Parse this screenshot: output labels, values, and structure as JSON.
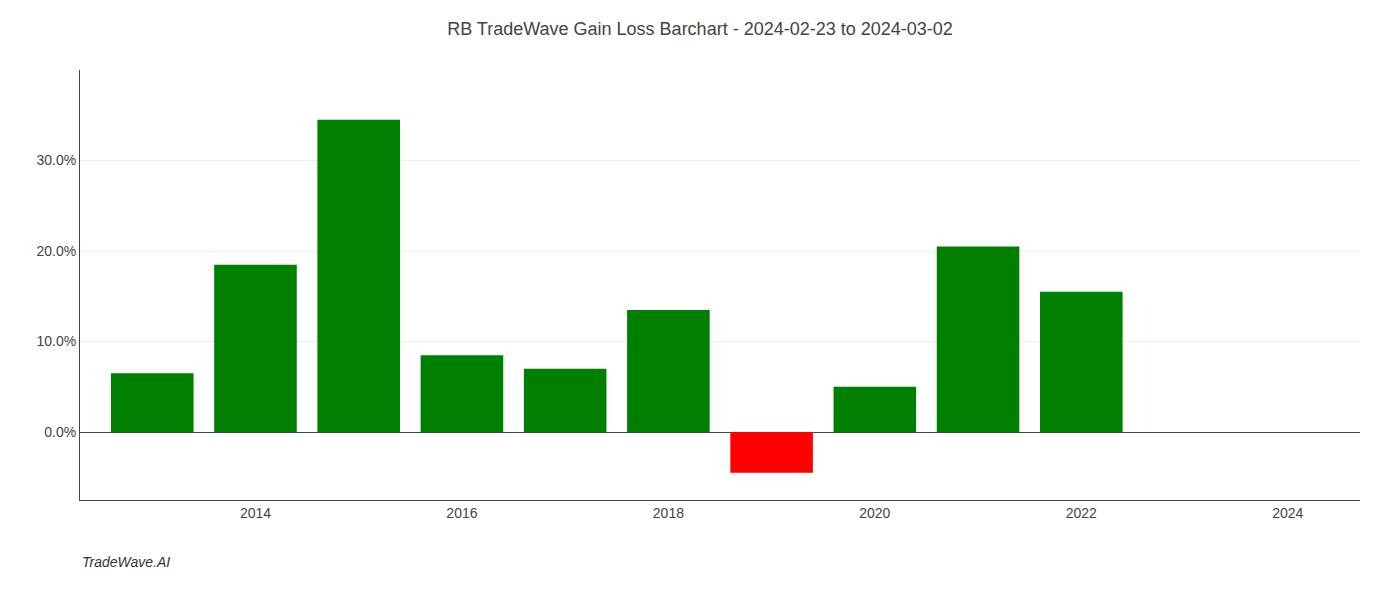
{
  "chart_data": {
    "type": "bar",
    "title": "RB TradeWave Gain Loss Barchart - 2024-02-23 to 2024-03-02",
    "annotations": [
      "TradeWave.AI"
    ],
    "x": [
      2013,
      2014,
      2015,
      2016,
      2017,
      2018,
      2019,
      2020,
      2021,
      2022,
      2023
    ],
    "values": [
      0.065,
      0.185,
      0.345,
      0.085,
      0.07,
      0.135,
      -0.045,
      0.05,
      0.205,
      0.155,
      0.0
    ],
    "colors": [
      "#008000",
      "#008000",
      "#008000",
      "#008000",
      "#008000",
      "#008000",
      "#ff0000",
      "#008000",
      "#008000",
      "#008000",
      "#008000"
    ],
    "xlim": [
      2012.3,
      2024.7
    ],
    "xticks": [
      2014,
      2016,
      2018,
      2020,
      2022,
      2024
    ],
    "ylim": [
      -0.075,
      0.4
    ],
    "yticks": [
      {
        "value": 0.0,
        "label": "0.0%"
      },
      {
        "value": 0.1,
        "label": "10.0%"
      },
      {
        "value": 0.2,
        "label": "20.0%"
      },
      {
        "value": 0.3,
        "label": "30.0%"
      }
    ],
    "grid": true
  }
}
